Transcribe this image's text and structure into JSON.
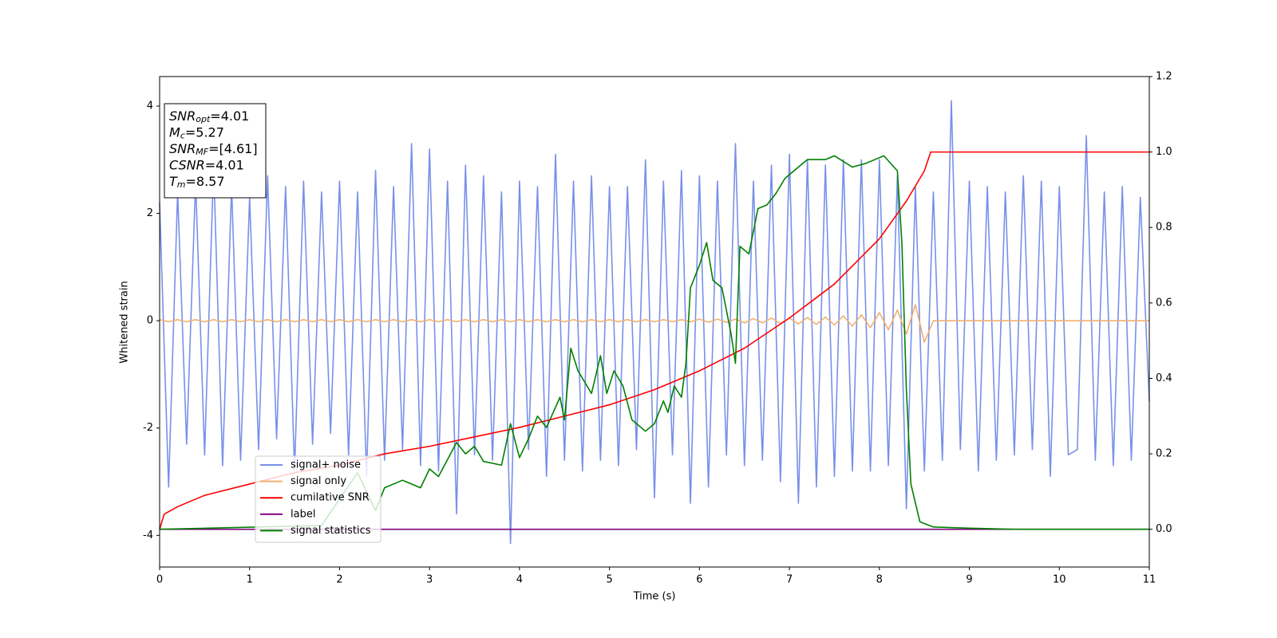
{
  "chart_data": {
    "type": "line",
    "xlabel": "Time (s)",
    "ylabel": "Whitened strain",
    "xlim": [
      0,
      11
    ],
    "xticks": [
      0,
      1,
      2,
      3,
      4,
      5,
      6,
      7,
      8,
      9,
      10,
      11
    ],
    "ylim": [
      -4.59,
      4.55
    ],
    "yticks": [
      -4,
      -2,
      0,
      2,
      4
    ],
    "y2lim": [
      -0.1,
      1.2
    ],
    "y2ticks": [
      {
        "value": 0,
        "label": "0.0"
      },
      0.2,
      0.4,
      0.6,
      0.8,
      {
        "value": 1,
        "label": "1.0"
      },
      1.2
    ],
    "legend": "lower left",
    "annotations": [
      {
        "symbol": "SNR",
        "subscript": "opt",
        "text": "=4.01"
      },
      {
        "symbol": "M",
        "subscript": "c",
        "text": "=5.27"
      },
      {
        "symbol": "SNR",
        "subscript": "MF",
        "text": "=[4.61]"
      },
      {
        "symbol": "CSNR",
        "text": "=4.01"
      },
      {
        "symbol": "T",
        "subscript": "m",
        "text": "=8.57"
      }
    ],
    "x": [
      0,
      0.1,
      0.2,
      0.3,
      0.4,
      0.5,
      0.6,
      0.7,
      0.8,
      0.9,
      1,
      1.1,
      1.2,
      1.3,
      1.4,
      1.5,
      1.6,
      1.7,
      1.8,
      1.9,
      2,
      2.1,
      2.2,
      2.3,
      2.4,
      2.5,
      2.6,
      2.7,
      2.8,
      2.9,
      3,
      3.1,
      3.2,
      3.3,
      3.4,
      3.5,
      3.6,
      3.7,
      3.8,
      3.9,
      4,
      4.1,
      4.2,
      4.3,
      4.4,
      4.5,
      4.6,
      4.7,
      4.8,
      4.9,
      5,
      5.1,
      5.2,
      5.3,
      5.4,
      5.5,
      5.6,
      5.7,
      5.8,
      5.9,
      6,
      6.1,
      6.2,
      6.3,
      6.4,
      6.5,
      6.6,
      6.7,
      6.8,
      6.9,
      7,
      7.1,
      7.2,
      7.3,
      7.4,
      7.5,
      7.6,
      7.7,
      7.8,
      7.9,
      8,
      8.1,
      8.2,
      8.3,
      8.4,
      8.5,
      8.6,
      8.7,
      8.8,
      8.9,
      9,
      9.1,
      9.2,
      9.3,
      9.4,
      9.5,
      9.6,
      9.7,
      9.8,
      9.9,
      10,
      10.1,
      10.2,
      10.3,
      10.4,
      10.5,
      10.6,
      10.7,
      10.8,
      10.9,
      11
    ],
    "series": [
      {
        "name": "signal+ noise",
        "color": "#7890e8",
        "values": [
          2.2,
          -3.1,
          2.4,
          -2.3,
          2.6,
          -2.5,
          2.9,
          -2.7,
          2.5,
          -2.6,
          2.3,
          -2.4,
          2.7,
          -2.2,
          2.5,
          -2.8,
          2.6,
          -2.3,
          2.4,
          -2.1,
          2.6,
          -2.5,
          2.4,
          -2.9,
          2.8,
          -2.6,
          2.5,
          -2.4,
          3.3,
          -2.7,
          3.2,
          -2.8,
          2.6,
          -3.6,
          2.9,
          -2.5,
          2.7,
          -2.6,
          2.4,
          -4.15,
          2.6,
          -2.4,
          2.5,
          -2.9,
          3.1,
          -2.6,
          2.6,
          -2.8,
          2.7,
          -2.6,
          2.5,
          -2.7,
          2.5,
          -2.4,
          3.0,
          -3.3,
          2.6,
          -2.5,
          2.8,
          -3.4,
          2.7,
          -3.1,
          2.6,
          -2.5,
          3.3,
          -2.7,
          2.6,
          -2.6,
          2.9,
          -3.0,
          3.1,
          -3.4,
          3.0,
          -3.1,
          2.9,
          -2.9,
          3.0,
          -2.8,
          3.0,
          -2.8,
          3.0,
          -2.7,
          2.7,
          -3.5,
          2.5,
          -2.8,
          2.4,
          -2.6,
          4.1,
          -2.4,
          2.6,
          -2.8,
          2.5,
          -2.6,
          2.4,
          -2.5,
          2.7,
          -2.4,
          2.6,
          -2.9,
          2.5,
          -2.5,
          -2.4,
          3.45,
          -2.6,
          2.4,
          -2.7,
          2.5,
          -2.6,
          2.3,
          -1.5
        ]
      },
      {
        "name": "signal only",
        "color": "#f0b070",
        "values": [
          0.02,
          -0.02,
          0.02,
          -0.02,
          0.02,
          -0.02,
          0.02,
          -0.02,
          0.02,
          -0.02,
          0.02,
          -0.02,
          0.02,
          -0.02,
          0.02,
          -0.02,
          0.02,
          -0.02,
          0.02,
          -0.02,
          0.02,
          -0.02,
          0.02,
          -0.02,
          0.02,
          -0.02,
          0.02,
          -0.02,
          0.02,
          -0.02,
          0.02,
          -0.02,
          0.02,
          -0.02,
          0.02,
          -0.02,
          0.02,
          -0.02,
          0.02,
          -0.02,
          0.02,
          -0.02,
          0.02,
          -0.02,
          0.02,
          -0.02,
          0.02,
          -0.02,
          0.02,
          -0.02,
          0.02,
          -0.02,
          0.02,
          -0.02,
          0.02,
          -0.02,
          0.02,
          -0.02,
          0.02,
          -0.02,
          0.03,
          -0.03,
          0.03,
          -0.03,
          0.03,
          -0.04,
          0.04,
          -0.04,
          0.05,
          -0.05,
          0.05,
          -0.06,
          0.06,
          -0.07,
          0.07,
          -0.08,
          0.09,
          -0.1,
          0.11,
          -0.13,
          0.15,
          -0.17,
          0.2,
          -0.25,
          0.3,
          -0.4,
          0,
          0,
          0,
          0,
          0,
          0,
          0,
          0,
          0,
          0,
          0,
          0,
          0,
          0,
          0,
          0,
          0,
          0,
          0,
          0,
          0,
          0,
          0,
          0,
          0
        ]
      },
      {
        "name": "cumilative SNR",
        "color": "#ff0000",
        "axis": "y2",
        "x": [
          0,
          0.05,
          0.2,
          0.5,
          1,
          1.5,
          2,
          2.5,
          3,
          3.5,
          4,
          4.5,
          5,
          5.5,
          6,
          6.5,
          7,
          7.5,
          8,
          8.3,
          8.5,
          8.57,
          11
        ],
        "values": [
          0.0,
          0.04,
          0.06,
          0.09,
          0.12,
          0.15,
          0.17,
          0.2,
          0.22,
          0.245,
          0.27,
          0.3,
          0.33,
          0.37,
          0.42,
          0.48,
          0.56,
          0.65,
          0.77,
          0.87,
          0.95,
          1.0,
          1.0
        ]
      },
      {
        "name": "label",
        "color": "#800080",
        "axis": "y2",
        "x": [
          0,
          11
        ],
        "values": [
          0,
          0
        ]
      },
      {
        "name": "signal statistics",
        "color": "#008000",
        "axis": "y2",
        "x": [
          0,
          1.8,
          2.2,
          2.4,
          2.5,
          2.7,
          2.9,
          3.0,
          3.1,
          3.3,
          3.4,
          3.5,
          3.6,
          3.8,
          3.9,
          4.0,
          4.1,
          4.2,
          4.3,
          4.45,
          4.5,
          4.57,
          4.65,
          4.8,
          4.9,
          4.97,
          5.05,
          5.15,
          5.25,
          5.4,
          5.5,
          5.6,
          5.65,
          5.72,
          5.8,
          5.85,
          5.9,
          6.0,
          6.08,
          6.15,
          6.25,
          6.35,
          6.4,
          6.45,
          6.55,
          6.65,
          6.75,
          6.85,
          6.95,
          7.1,
          7.2,
          7.4,
          7.5,
          7.7,
          7.85,
          8.05,
          8.2,
          8.25,
          8.3,
          8.35,
          8.45,
          8.6,
          9.0,
          9.5,
          11
        ],
        "values": [
          0,
          0.01,
          0.15,
          0.05,
          0.11,
          0.13,
          0.11,
          0.16,
          0.14,
          0.23,
          0.2,
          0.22,
          0.18,
          0.17,
          0.28,
          0.19,
          0.24,
          0.3,
          0.27,
          0.35,
          0.29,
          0.48,
          0.42,
          0.36,
          0.46,
          0.36,
          0.42,
          0.38,
          0.29,
          0.26,
          0.28,
          0.34,
          0.31,
          0.38,
          0.35,
          0.44,
          0.64,
          0.7,
          0.76,
          0.66,
          0.64,
          0.52,
          0.44,
          0.75,
          0.73,
          0.85,
          0.86,
          0.89,
          0.93,
          0.96,
          0.98,
          0.98,
          0.99,
          0.96,
          0.97,
          0.99,
          0.95,
          0.76,
          0.37,
          0.12,
          0.02,
          0.006,
          0.003,
          0,
          0
        ]
      }
    ]
  }
}
